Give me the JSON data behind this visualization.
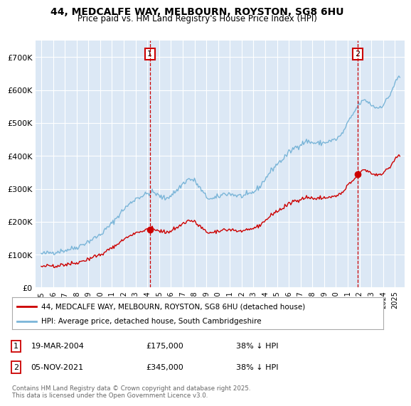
{
  "title1": "44, MEDCALFE WAY, MELBOURN, ROYSTON, SG8 6HU",
  "title2": "Price paid vs. HM Land Registry's House Price Index (HPI)",
  "background_color": "#dce8f5",
  "plot_bg_color": "#dce8f5",
  "sale1_year": 2004.21,
  "sale1_price": 175000,
  "sale2_year": 2021.85,
  "sale2_price": 345000,
  "legend1": "44, MEDCALFE WAY, MELBOURN, ROYSTON, SG8 6HU (detached house)",
  "legend2": "HPI: Average price, detached house, South Cambridgeshire",
  "footer": "Contains HM Land Registry data © Crown copyright and database right 2025.\nThis data is licensed under the Open Government Licence v3.0.",
  "hpi_color": "#7ab5d8",
  "price_color": "#cc0000",
  "marker_color": "#cc0000",
  "vline_color": "#cc0000",
  "ylim": [
    0,
    750000
  ],
  "yticks": [
    0,
    100000,
    200000,
    300000,
    400000,
    500000,
    600000,
    700000
  ],
  "ytick_labels": [
    "£0",
    "£100K",
    "£200K",
    "£300K",
    "£400K",
    "£500K",
    "£600K",
    "£700K"
  ],
  "xlim_start": 1994.5,
  "xlim_end": 2025.8,
  "annot1_date": "19-MAR-2004",
  "annot1_price": "£175,000",
  "annot1_hpi": "38% ↓ HPI",
  "annot2_date": "05-NOV-2021",
  "annot2_price": "£345,000",
  "annot2_hpi": "38% ↓ HPI"
}
